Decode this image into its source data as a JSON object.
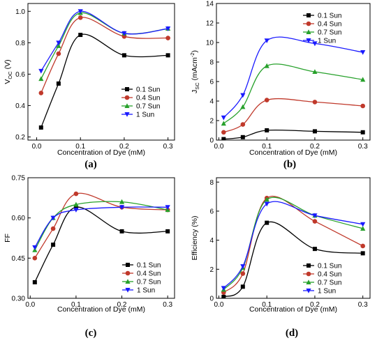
{
  "chart_data": [
    {
      "type": "line",
      "caption": "(a)",
      "xlabel": "Concentration of Dye (mM)",
      "ylabel": "V",
      "ylabel_sub": "OC",
      "ylabel_suffix": " (V)",
      "xlim": [
        -0.02,
        0.315
      ],
      "ylim": [
        0.18,
        1.05
      ],
      "xticks": [
        0.0,
        0.1,
        0.2,
        0.3
      ],
      "xtick_labels": [
        "0.0",
        "0.1",
        "0.2",
        "0.3"
      ],
      "yticks": [
        0.2,
        0.4,
        0.6,
        0.8,
        1.0
      ],
      "ytick_labels": [
        "0.2",
        "0.4",
        "0.6",
        "0.8",
        "1.0"
      ],
      "legend_position": "bottom-right",
      "x": [
        0.01,
        0.05,
        0.1,
        0.2,
        0.3
      ],
      "series": [
        {
          "name": "0.1 Sun",
          "marker": "square",
          "color": "#000000",
          "values": [
            0.26,
            0.54,
            0.85,
            0.72,
            0.72
          ]
        },
        {
          "name": "0.4 Sun",
          "marker": "circle",
          "color": "#c0392b",
          "values": [
            0.48,
            0.73,
            0.96,
            0.84,
            0.83
          ]
        },
        {
          "name": "0.7 Sun",
          "marker": "triangle-up",
          "color": "#27a12b",
          "values": [
            0.57,
            0.78,
            0.99,
            0.86,
            0.89
          ]
        },
        {
          "name": "1 Sun",
          "marker": "triangle-down",
          "color": "#1a1aff",
          "values": [
            0.62,
            0.8,
            1.0,
            0.86,
            0.89
          ]
        }
      ]
    },
    {
      "type": "line",
      "caption": "(b)",
      "xlabel": "Concentration of Dye (mM)",
      "ylabel": "J",
      "ylabel_sub": "SC",
      "ylabel_suffix": " (mAcm",
      "ylabel_sup": "-2",
      "ylabel_end": ")",
      "xlim": [
        -0.005,
        0.315
      ],
      "ylim": [
        0,
        14
      ],
      "xticks": [
        0.0,
        0.1,
        0.2,
        0.3
      ],
      "xtick_labels": [
        "0.0",
        "0.1",
        "0.2",
        "0.3"
      ],
      "yticks": [
        0,
        2,
        4,
        6,
        8,
        10,
        12,
        14
      ],
      "ytick_labels": [
        "0",
        "2",
        "4",
        "6",
        "8",
        "10",
        "12",
        "14"
      ],
      "legend_position": "top-right",
      "x": [
        0.01,
        0.05,
        0.1,
        0.2,
        0.3
      ],
      "series": [
        {
          "name": "0.1 Sun",
          "marker": "square",
          "color": "#000000",
          "values": [
            0.1,
            0.3,
            1.0,
            0.9,
            0.8
          ]
        },
        {
          "name": "0.4 Sun",
          "marker": "circle",
          "color": "#c0392b",
          "values": [
            0.8,
            1.6,
            4.1,
            3.9,
            3.5
          ]
        },
        {
          "name": "0.7 Sun",
          "marker": "triangle-up",
          "color": "#27a12b",
          "values": [
            1.7,
            3.4,
            7.6,
            7.0,
            6.2
          ]
        },
        {
          "name": "1 Sun",
          "marker": "triangle-down",
          "color": "#1a1aff",
          "values": [
            2.3,
            4.6,
            10.2,
            9.9,
            9.0
          ]
        }
      ]
    },
    {
      "type": "line",
      "caption": "(c)",
      "xlabel": "Concentration of Dye (mM)",
      "ylabel": "FF",
      "xlim": [
        -0.005,
        0.315
      ],
      "ylim": [
        0.3,
        0.75
      ],
      "xticks": [
        0.0,
        0.1,
        0.2,
        0.3
      ],
      "xtick_labels": [
        "0.0",
        "0.1",
        "0.2",
        "0.3"
      ],
      "yticks": [
        0.3,
        0.45,
        0.6,
        0.75
      ],
      "ytick_labels": [
        "0.30",
        "0.45",
        "0.60",
        "0.75"
      ],
      "legend_position": "bottom-right",
      "x": [
        0.01,
        0.05,
        0.1,
        0.2,
        0.3
      ],
      "series": [
        {
          "name": "0.1 Sun",
          "marker": "square",
          "color": "#000000",
          "values": [
            0.36,
            0.5,
            0.64,
            0.55,
            0.55
          ]
        },
        {
          "name": "0.4 Sun",
          "marker": "circle",
          "color": "#c0392b",
          "values": [
            0.45,
            0.56,
            0.69,
            0.64,
            0.63
          ]
        },
        {
          "name": "0.7 Sun",
          "marker": "triangle-up",
          "color": "#27a12b",
          "values": [
            0.48,
            0.6,
            0.65,
            0.66,
            0.63
          ]
        },
        {
          "name": "1 Sun",
          "marker": "triangle-down",
          "color": "#1a1aff",
          "values": [
            0.49,
            0.6,
            0.63,
            0.64,
            0.64
          ]
        }
      ]
    },
    {
      "type": "line",
      "caption": "(d)",
      "xlabel": "Concentration of Dye (mM)",
      "ylabel": "Efficiency (%)",
      "xlim": [
        -0.005,
        0.315
      ],
      "ylim": [
        0,
        8.3
      ],
      "xticks": [
        0.0,
        0.1,
        0.2,
        0.3
      ],
      "xtick_labels": [
        "0.0",
        "0.1",
        "0.2",
        "0.3"
      ],
      "yticks": [
        0,
        2,
        4,
        6,
        8
      ],
      "ytick_labels": [
        "0",
        "2",
        "4",
        "6",
        "8"
      ],
      "legend_position": "bottom-right",
      "x": [
        0.01,
        0.05,
        0.1,
        0.2,
        0.3
      ],
      "series": [
        {
          "name": "0.1 Sun",
          "marker": "square",
          "color": "#000000",
          "values": [
            0.1,
            0.8,
            5.2,
            3.4,
            3.1
          ]
        },
        {
          "name": "0.4 Sun",
          "marker": "circle",
          "color": "#c0392b",
          "values": [
            0.4,
            1.7,
            6.9,
            5.3,
            3.6
          ]
        },
        {
          "name": "0.7 Sun",
          "marker": "triangle-up",
          "color": "#27a12b",
          "values": [
            0.6,
            2.1,
            6.8,
            5.7,
            4.8
          ]
        },
        {
          "name": "1 Sun",
          "marker": "triangle-down",
          "color": "#1a1aff",
          "values": [
            0.7,
            2.2,
            6.5,
            5.7,
            5.1
          ]
        }
      ]
    }
  ]
}
